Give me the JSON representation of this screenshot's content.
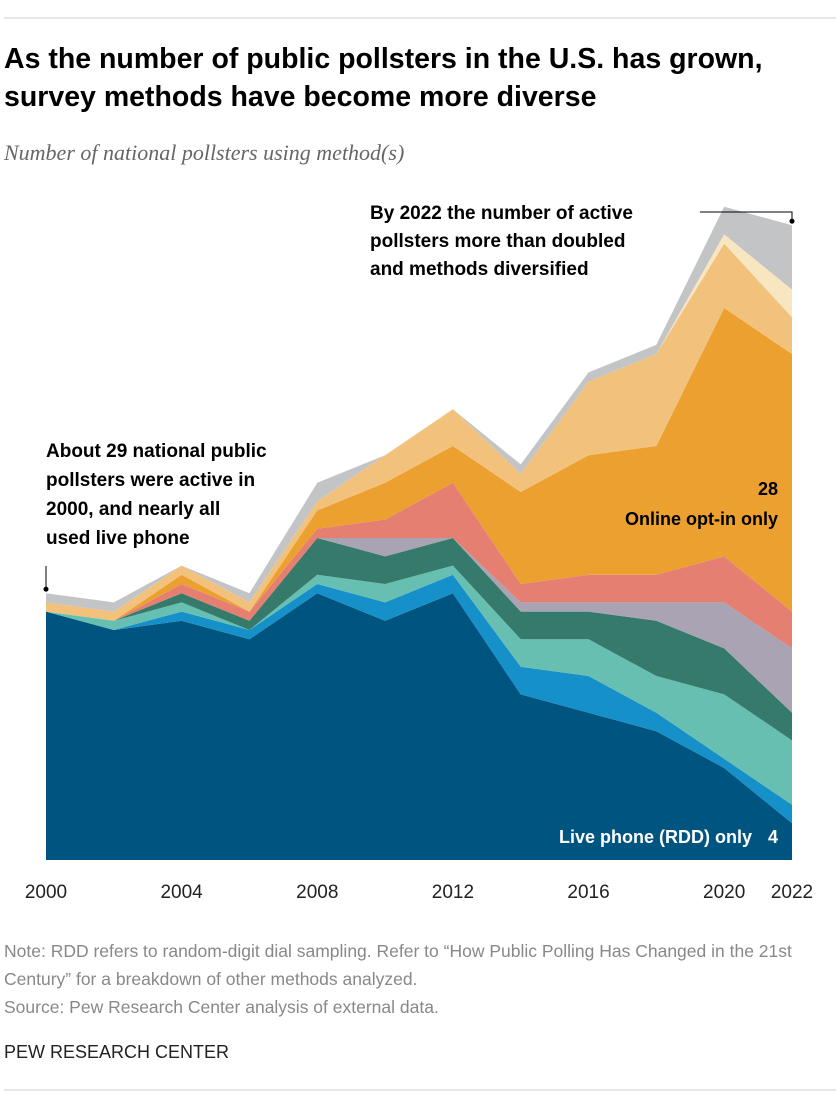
{
  "chart_data": {
    "type": "stacked-area",
    "title": "As the number of public pollsters in the U.S. has grown, survey methods have become more diverse",
    "subtitle": "Number of national pollsters using method(s)",
    "x": [
      2000,
      2002,
      2004,
      2006,
      2008,
      2010,
      2012,
      2014,
      2016,
      2018,
      2020,
      2022
    ],
    "xlim": [
      2000,
      2022
    ],
    "xticks": [
      2000,
      2004,
      2008,
      2012,
      2016,
      2020,
      2022
    ],
    "series": [
      {
        "name": "Live phone (RDD) only",
        "color": "#005580",
        "values": [
          27,
          25,
          26,
          24,
          29,
          26,
          29,
          18,
          16,
          14,
          10,
          4
        ]
      },
      {
        "color": "#1590c8",
        "values": [
          0,
          0,
          1,
          1,
          1,
          2,
          2,
          3,
          4,
          2,
          1,
          2
        ]
      },
      {
        "color": "#66bfb0",
        "values": [
          0,
          1,
          1,
          0,
          1,
          2,
          1,
          3,
          4,
          4,
          7,
          7
        ]
      },
      {
        "color": "#357a6a",
        "values": [
          0,
          0,
          1,
          1,
          4,
          3,
          3,
          3,
          3,
          6,
          5,
          3
        ]
      },
      {
        "color": "#aaa3b3",
        "values": [
          0,
          0,
          0,
          0,
          0,
          2,
          0,
          1,
          1,
          2,
          5,
          7
        ]
      },
      {
        "color": "#e57f72",
        "values": [
          0,
          0,
          1,
          1,
          1,
          2,
          6,
          2,
          3,
          3,
          5,
          4
        ]
      },
      {
        "name": "Online opt-in only",
        "color": "#eba030",
        "values": [
          0,
          0,
          1,
          0,
          2,
          4,
          4,
          10,
          13,
          14,
          27,
          28
        ]
      },
      {
        "color": "#f2c27d",
        "values": [
          1,
          1,
          1,
          1,
          1,
          3,
          4,
          2,
          8,
          10,
          7,
          4
        ]
      },
      {
        "color": "#f8e6c0",
        "values": [
          0,
          0,
          0,
          0,
          0,
          0,
          0,
          0,
          0,
          0,
          1,
          3
        ]
      },
      {
        "color": "#c3c4c6",
        "values": [
          1,
          1,
          0,
          1,
          2,
          0,
          0,
          1,
          1,
          1,
          3,
          7
        ]
      }
    ],
    "annotations": [
      [
        "About 29 national public",
        "pollsters were active in",
        "2000, and nearly all",
        "used live phone"
      ],
      [
        "By 2022 the number of active",
        "pollsters more than doubled",
        "and methods diversified"
      ]
    ],
    "note": "Note: RDD refers to random-digit dial sampling. Refer to “How Public Polling Has Changed in the 21st Century” for a breakdown of other methods analyzed.",
    "source": "Source: Pew Research Center analysis of external data.",
    "footer": "PEW RESEARCH CENTER"
  }
}
